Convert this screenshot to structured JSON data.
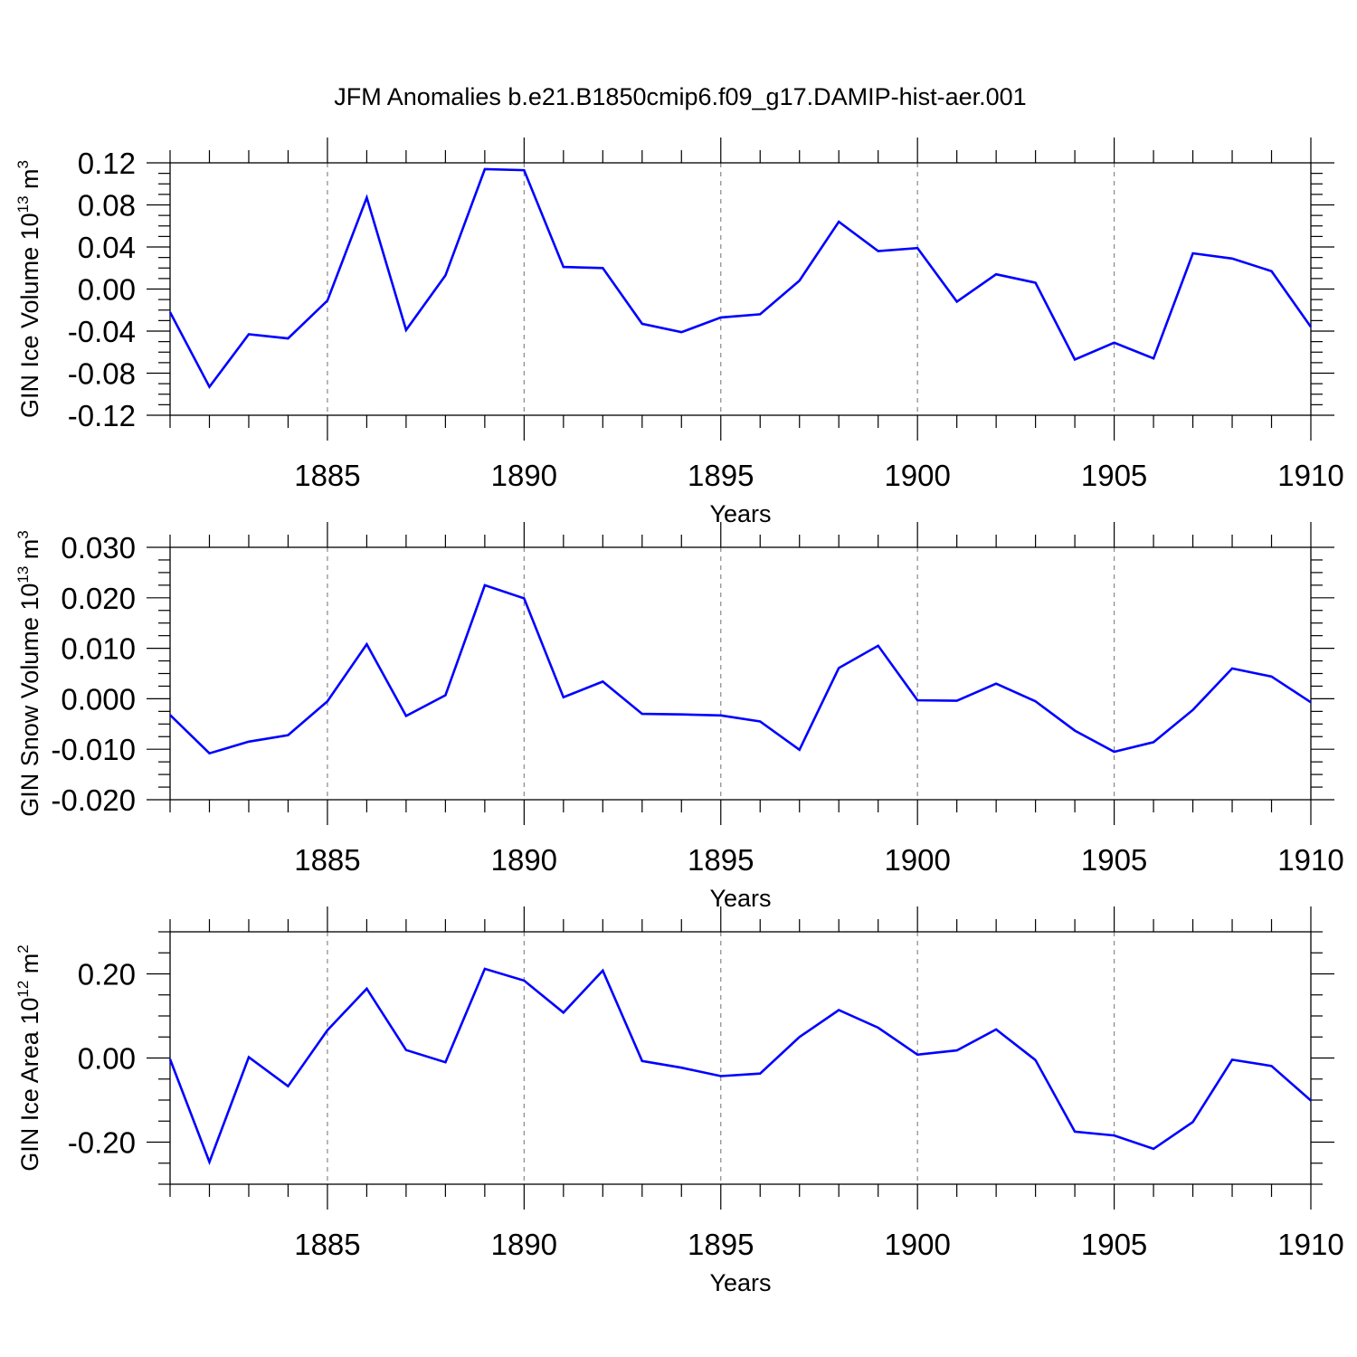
{
  "title": "JFM Anomalies b.e21.B1850cmip6.f09_g17.DAMIP-hist-aer.001",
  "chart_data": [
    {
      "type": "line",
      "ylabel": "GIN Ice Volume 10",
      "ylabel_sup": "13",
      "ylabel_unit": " m",
      "ylabel_unit_sup": "3",
      "xlabel": "Years",
      "xlim": [
        1881,
        1910
      ],
      "ylim": [
        -0.12,
        0.12
      ],
      "yticks": [
        -0.12,
        -0.08,
        -0.04,
        0.0,
        0.04,
        0.08,
        0.12
      ],
      "ytick_labels": [
        "-0.12",
        "-0.08",
        "-0.04",
        "0.00",
        "0.04",
        "0.08",
        "0.12"
      ],
      "xticks": [
        1885,
        1890,
        1895,
        1900,
        1905,
        1910
      ],
      "xtick_labels": [
        "1885",
        "1890",
        "1895",
        "1900",
        "1905",
        "1910"
      ],
      "color": "#0000ff",
      "x": [
        1881,
        1882,
        1883,
        1884,
        1885,
        1886,
        1887,
        1888,
        1889,
        1890,
        1891,
        1892,
        1893,
        1894,
        1895,
        1896,
        1897,
        1898,
        1899,
        1900,
        1901,
        1902,
        1903,
        1904,
        1905,
        1906,
        1907,
        1908,
        1909,
        1910
      ],
      "y": [
        -0.022,
        -0.093,
        -0.043,
        -0.047,
        -0.011,
        0.087,
        -0.039,
        0.013,
        0.114,
        0.113,
        0.021,
        0.02,
        -0.033,
        -0.041,
        -0.027,
        -0.024,
        0.008,
        0.064,
        0.036,
        0.039,
        -0.012,
        0.014,
        0.006,
        -0.067,
        -0.051,
        -0.066,
        0.034,
        0.029,
        0.017,
        -0.036
      ]
    },
    {
      "type": "line",
      "ylabel": "GIN Snow Volume 10",
      "ylabel_sup": "13",
      "ylabel_unit": " m",
      "ylabel_unit_sup": "3",
      "xlabel": "Years",
      "xlim": [
        1881,
        1910
      ],
      "ylim": [
        -0.02,
        0.03
      ],
      "yticks": [
        -0.02,
        -0.01,
        0.0,
        0.01,
        0.02,
        0.03
      ],
      "ytick_labels": [
        "-0.020",
        "-0.010",
        "0.000",
        "0.010",
        "0.020",
        "0.030"
      ],
      "xticks": [
        1885,
        1890,
        1895,
        1900,
        1905,
        1910
      ],
      "xtick_labels": [
        "1885",
        "1890",
        "1895",
        "1900",
        "1905",
        "1910"
      ],
      "color": "#0000ff",
      "x": [
        1881,
        1882,
        1883,
        1884,
        1885,
        1886,
        1887,
        1888,
        1889,
        1890,
        1891,
        1892,
        1893,
        1894,
        1895,
        1896,
        1897,
        1898,
        1899,
        1900,
        1901,
        1902,
        1903,
        1904,
        1905,
        1906,
        1907,
        1908,
        1909,
        1910
      ],
      "y": [
        -0.0032,
        -0.0108,
        -0.0085,
        -0.0072,
        -0.0005,
        0.0108,
        -0.0034,
        0.0007,
        0.0225,
        0.0199,
        0.0003,
        0.0034,
        -0.003,
        -0.0031,
        -0.0033,
        -0.0045,
        -0.0101,
        0.0061,
        0.0105,
        -0.0003,
        -0.0004,
        0.003,
        -0.0005,
        -0.0063,
        -0.0105,
        -0.0086,
        -0.0022,
        0.006,
        0.0044,
        -0.0007
      ]
    },
    {
      "type": "line",
      "ylabel": "GIN Ice Area 10",
      "ylabel_sup": "12",
      "ylabel_unit": " m",
      "ylabel_unit_sup": "2",
      "xlabel": "Years",
      "xlim": [
        1881,
        1910
      ],
      "ylim": [
        -0.3,
        0.3
      ],
      "yticks": [
        -0.2,
        0.0,
        0.2
      ],
      "ytick_labels": [
        "-0.20",
        "0.00",
        "0.20"
      ],
      "xticks": [
        1885,
        1890,
        1895,
        1900,
        1905,
        1910
      ],
      "xtick_labels": [
        "1885",
        "1890",
        "1895",
        "1900",
        "1905",
        "1910"
      ],
      "color": "#0000ff",
      "x": [
        1881,
        1882,
        1883,
        1884,
        1885,
        1886,
        1887,
        1888,
        1889,
        1890,
        1891,
        1892,
        1893,
        1894,
        1895,
        1896,
        1897,
        1898,
        1899,
        1900,
        1901,
        1902,
        1903,
        1904,
        1905,
        1906,
        1907,
        1908,
        1909,
        1910
      ],
      "y": [
        -0.003,
        -0.247,
        0.002,
        -0.067,
        0.066,
        0.165,
        0.019,
        -0.01,
        0.212,
        0.184,
        0.108,
        0.208,
        -0.007,
        -0.023,
        -0.043,
        -0.037,
        0.05,
        0.114,
        0.072,
        0.008,
        0.018,
        0.068,
        -0.005,
        -0.175,
        -0.184,
        -0.216,
        -0.152,
        -0.004,
        -0.019,
        -0.101
      ]
    }
  ]
}
